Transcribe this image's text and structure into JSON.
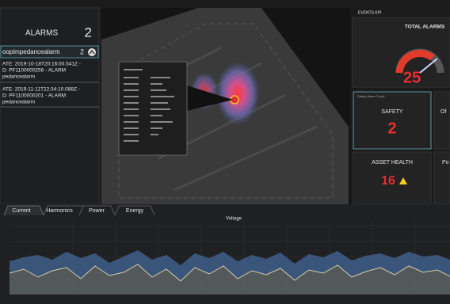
{
  "sidebar": {
    "title": "ALARMS",
    "count": 2,
    "group": {
      "name": "oopimpedancealarm",
      "count": 2
    },
    "entries": [
      {
        "line1": "ATE: 2019-10-18T20:16:00.541Z -",
        "line2": "D: PF1100000256 - ALARM",
        "line3": "pedancealarm"
      },
      {
        "line1": "ATE: 2019-11-11T22:34:10.088Z -",
        "line2": "D: PF1100000201 - ALARM",
        "line3": "pedancealarm"
      }
    ]
  },
  "kpi": {
    "header": "EVENTS KPI",
    "total_alarms": {
      "label": "TOTAL ALARMS",
      "value": 25
    },
    "safety": {
      "caption": "Safety Alarm Count",
      "label": "SAFETY",
      "value": 2
    },
    "asset_health": {
      "label": "ASSET HEALTH",
      "value": 16
    },
    "cut_labels": [
      "Of",
      "Po"
    ]
  },
  "tabs": [
    "Current",
    "Harmonics",
    "Power",
    "Energy"
  ],
  "chart": {
    "title": "Voltage"
  }
}
